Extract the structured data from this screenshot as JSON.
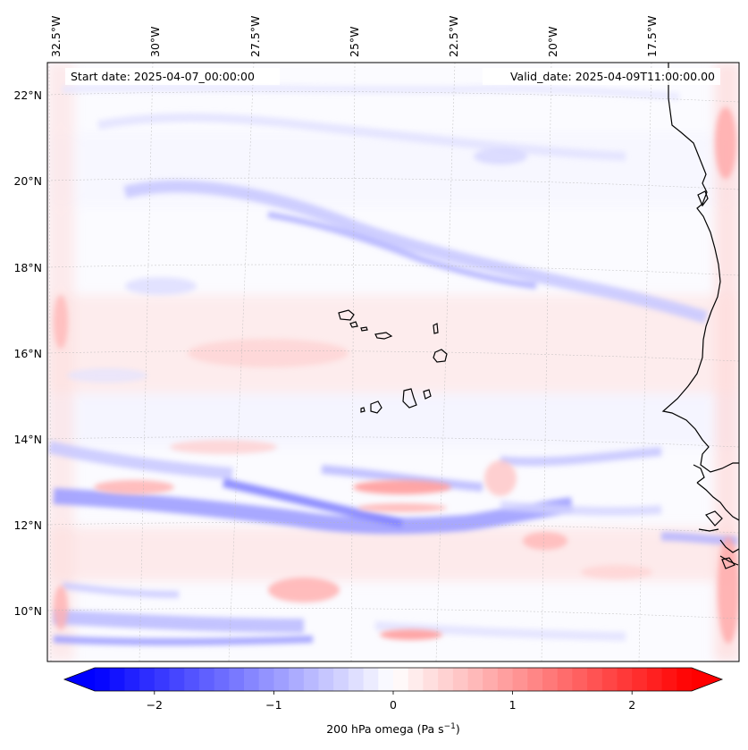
{
  "map": {
    "start_date": "Start date: 2025-04-07_00:00:00",
    "valid_date": "Valid_date: 2025-04-09T11:00:00.00",
    "lon_labels": [
      "32.5°W",
      "30°W",
      "27.5°W",
      "25°W",
      "22.5°W",
      "20°W",
      "17.5°W"
    ],
    "lat_labels": [
      "22°N",
      "20°N",
      "18°N",
      "16°N",
      "14°N",
      "12°N",
      "10°N"
    ],
    "field": "200 hPa omega",
    "colormap": "bwr",
    "gridlines": true,
    "coastlines": true,
    "extent": {
      "lon": [
        -32.7,
        -15.0
      ],
      "lat": [
        8.9,
        22.8
      ]
    }
  },
  "colorbar": {
    "label": "200 hPa omega (Pa s",
    "label_sup": "−1",
    "label_end": ")",
    "ticks": [
      "−2",
      "−1",
      "0",
      "1",
      "2"
    ],
    "tick_values": [
      -2,
      -1,
      0,
      1,
      2
    ],
    "range": [
      -2.5,
      2.5
    ],
    "extend": "both",
    "min_color": "#0000ff",
    "mid_color": "#ffffff",
    "max_color": "#ff0000"
  }
}
